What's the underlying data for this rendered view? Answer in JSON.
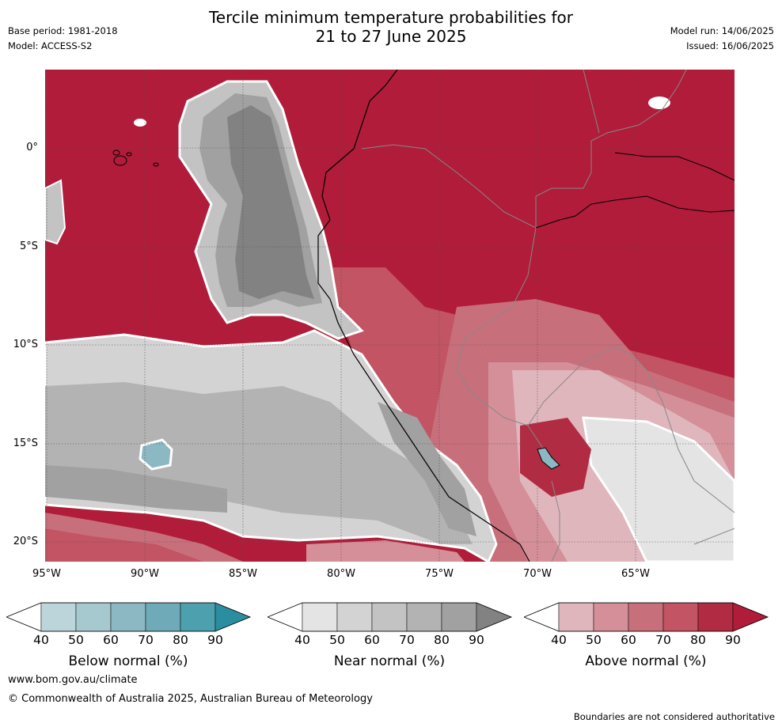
{
  "header": {
    "title_line1": "Tercile minimum temperature probabilities for",
    "title_line2": "21 to 27 June 2025",
    "base_period": "Base period: 1981-2018",
    "model": "Model: ACCESS-S2",
    "model_run": "Model run: 14/06/2025",
    "issued": "Issued: 16/06/2025"
  },
  "map": {
    "lat_labels": [
      "0°",
      "5°S",
      "10°S",
      "15°S",
      "20°S"
    ],
    "lon_labels": [
      "95°W",
      "90°W",
      "85°W",
      "80°W",
      "75°W",
      "70°W",
      "65°W"
    ]
  },
  "colorbars": [
    {
      "title": "Below normal (%)",
      "ticks": [
        "40",
        "50",
        "60",
        "70",
        "80",
        "90"
      ],
      "colors": [
        "#ffffff",
        "#bcd5da",
        "#a6c8cf",
        "#8bb8c3",
        "#6eaab7",
        "#4da0ae",
        "#2a8ea0"
      ]
    },
    {
      "title": "Near normal (%)",
      "ticks": [
        "40",
        "50",
        "60",
        "70",
        "80",
        "90"
      ],
      "colors": [
        "#ffffff",
        "#e4e4e4",
        "#d3d3d3",
        "#c3c3c3",
        "#b3b3b3",
        "#a1a1a1",
        "#828282"
      ]
    },
    {
      "title": "Above normal (%)",
      "ticks": [
        "40",
        "50",
        "60",
        "70",
        "80",
        "90"
      ],
      "colors": [
        "#ffffff",
        "#e0b6bd",
        "#d48f99",
        "#c86f7c",
        "#c25463",
        "#b12c43",
        "#b01c39"
      ]
    }
  ],
  "footer": {
    "website": "www.bom.gov.au/climate",
    "copyright": "© Commonwealth of Australia 2025, Australian Bureau of Meteorology",
    "disclaimer": "Boundaries are not considered authoritative"
  }
}
